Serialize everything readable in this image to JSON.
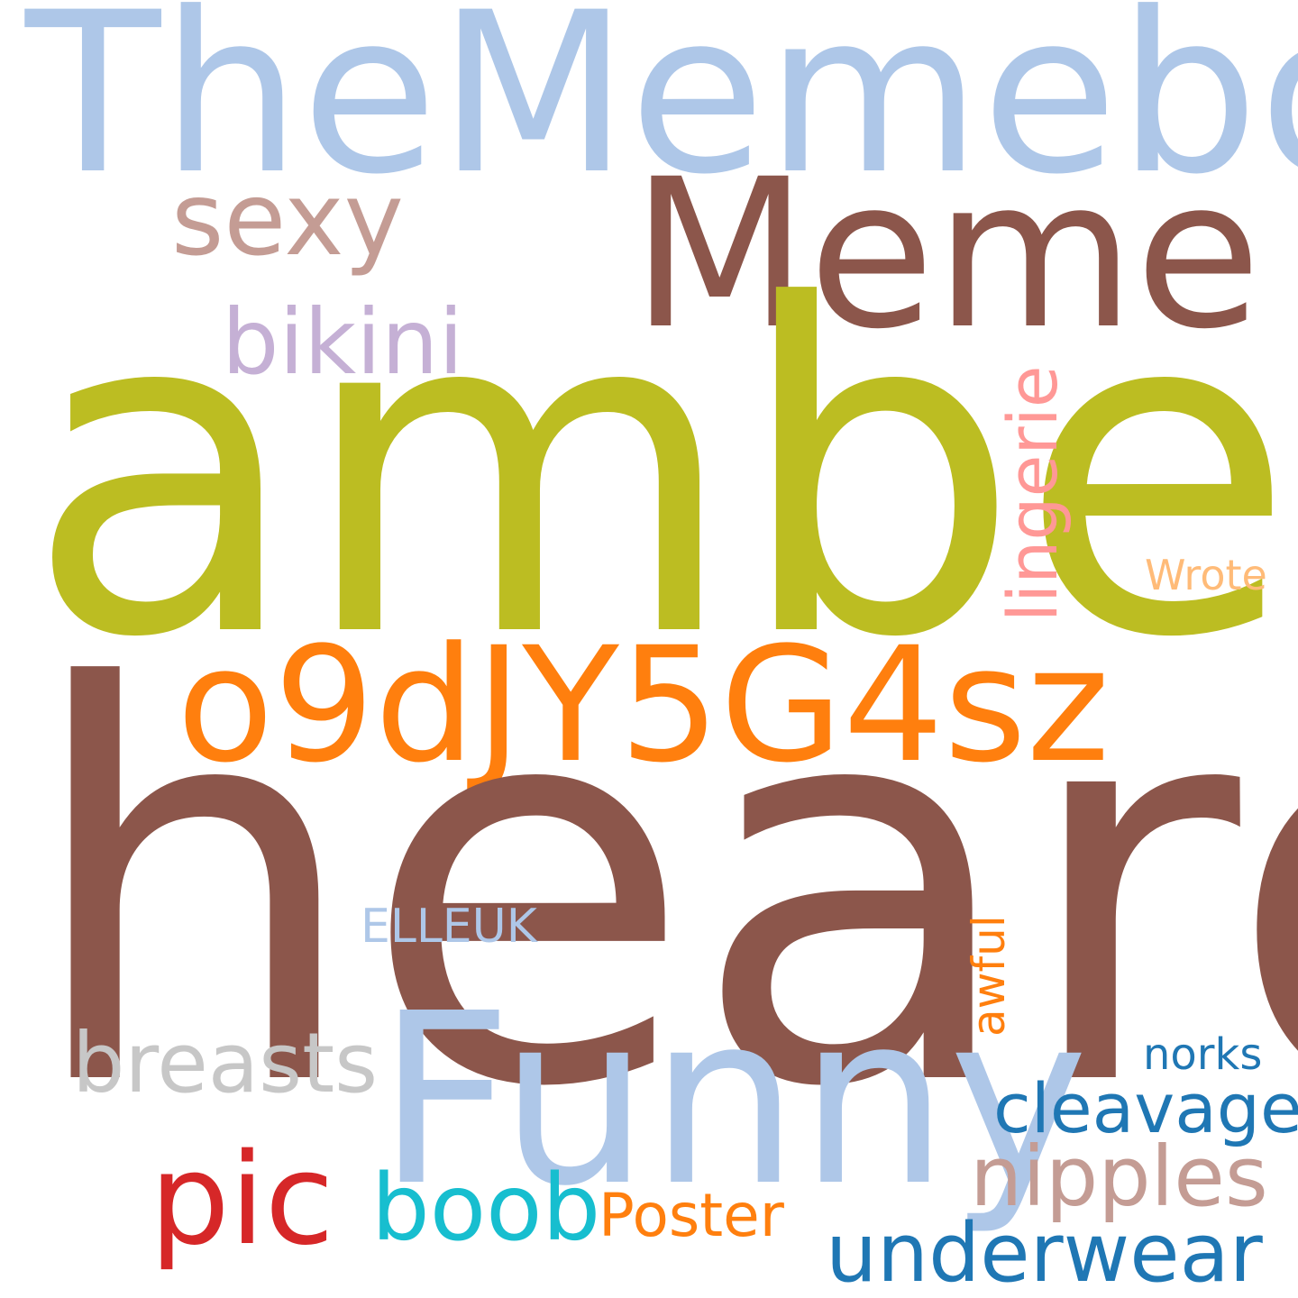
{
  "words": {
    "thememebot": "TheMemebot",
    "meme": "Meme",
    "sexy": "sexy",
    "bikini": "bikini",
    "amber": "amber",
    "lingerie": "lingerie",
    "wrote": "Wrote",
    "o9djy5g4sz": "o9dJY5G4sz",
    "heard": "heard",
    "elleuk": "ELLEUK",
    "awful": "awful",
    "funny": "Funny",
    "breasts": "breasts",
    "norks": "norks",
    "cleavage": "cleavage",
    "nipples": "nipples",
    "pic": "pic",
    "boob": "boob",
    "poster": "Poster",
    "underwear": "underwear"
  },
  "colors": {
    "background": "#ffffff",
    "lightblue": "#aec7e8",
    "brown": "#8c564b",
    "rosy": "#c49c94",
    "lavender": "#c5b0d5",
    "olive": "#bcbd22",
    "pink": "#ff9896",
    "peach": "#ffbb78",
    "orange": "#ff7f0e",
    "gray": "#c7c7c7",
    "blue": "#1f77b4",
    "red": "#d62728",
    "cyan": "#17becf"
  }
}
